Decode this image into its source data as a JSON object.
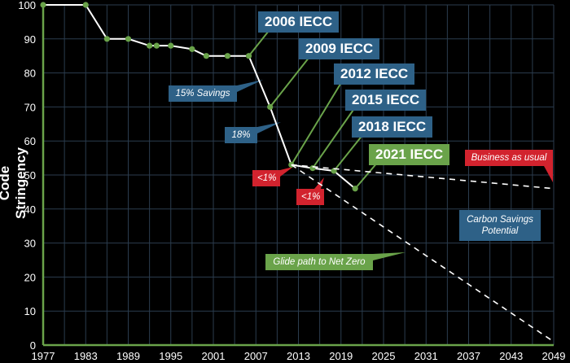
{
  "chart_data": {
    "type": "line",
    "title": "",
    "xlabel": "",
    "ylabel": "Code Stringency",
    "xlim": [
      1977,
      2049
    ],
    "ylim": [
      0,
      100
    ],
    "x_ticks": [
      1977,
      1983,
      1989,
      1995,
      2001,
      2007,
      2013,
      2019,
      2025,
      2031,
      2037,
      2043,
      2049
    ],
    "y_ticks": [
      0,
      10,
      20,
      30,
      40,
      50,
      60,
      70,
      80,
      90,
      100
    ],
    "grid": true,
    "series": [
      {
        "name": "Code Stringency",
        "style": "solid",
        "x": [
          1977,
          1983,
          1986,
          1989,
          1992,
          1993,
          1995,
          1998,
          2000,
          2003,
          2006,
          2009,
          2012,
          2015,
          2018,
          2021
        ],
        "y": [
          100,
          100,
          90,
          90,
          88,
          88,
          88,
          87,
          85,
          85,
          85,
          70,
          53,
          52,
          51.2,
          46
        ]
      },
      {
        "name": "Business as usual",
        "style": "dashed",
        "x": [
          2012,
          2049
        ],
        "y": [
          53,
          46
        ]
      },
      {
        "name": "Glide path to Net Zero",
        "style": "dashed",
        "x": [
          2012,
          2049
        ],
        "y": [
          53,
          1
        ]
      }
    ],
    "annotations": [
      {
        "text": "2006 IECC",
        "x": 2006,
        "y": 85,
        "color": "blue"
      },
      {
        "text": "2009 IECC",
        "x": 2009,
        "y": 70,
        "color": "blue"
      },
      {
        "text": "2012 IECC",
        "x": 2012,
        "y": 53,
        "color": "blue"
      },
      {
        "text": "2015 IECC",
        "x": 2015,
        "y": 52,
        "color": "blue"
      },
      {
        "text": "2018 IECC",
        "x": 2018,
        "y": 51.2,
        "color": "blue"
      },
      {
        "text": "2021 IECC",
        "x": 2021,
        "y": 46,
        "color": "green"
      },
      {
        "text": "15% Savings",
        "color": "blue"
      },
      {
        "text": "18%",
        "color": "blue"
      },
      {
        "text": "<1%",
        "color": "red"
      },
      {
        "text": "<1%",
        "color": "red"
      },
      {
        "text": "Business as usual",
        "color": "red"
      },
      {
        "text": "Carbon Savings Potential",
        "color": "blue"
      },
      {
        "text": "Glide path to Net Zero",
        "color": "green"
      }
    ]
  },
  "labels": {
    "ylabel": "Code Stringency",
    "iecc2006": "2006 IECC",
    "iecc2009": "2009 IECC",
    "iecc2012": "2012 IECC",
    "iecc2015": "2015 IECC",
    "iecc2018": "2018 IECC",
    "iecc2021": "2021 IECC",
    "savings15": "15% Savings",
    "savings18": "18%",
    "lt1a": "<1%",
    "lt1b": "<1%",
    "bau": "Business as usual",
    "carbon1": "Carbon Savings",
    "carbon2": "Potential",
    "glide": "Glide path to Net Zero"
  },
  "colors": {
    "blue": "#2e6187",
    "green": "#6aa34a",
    "red": "#d2232e",
    "grid": "#2b3c4e"
  }
}
